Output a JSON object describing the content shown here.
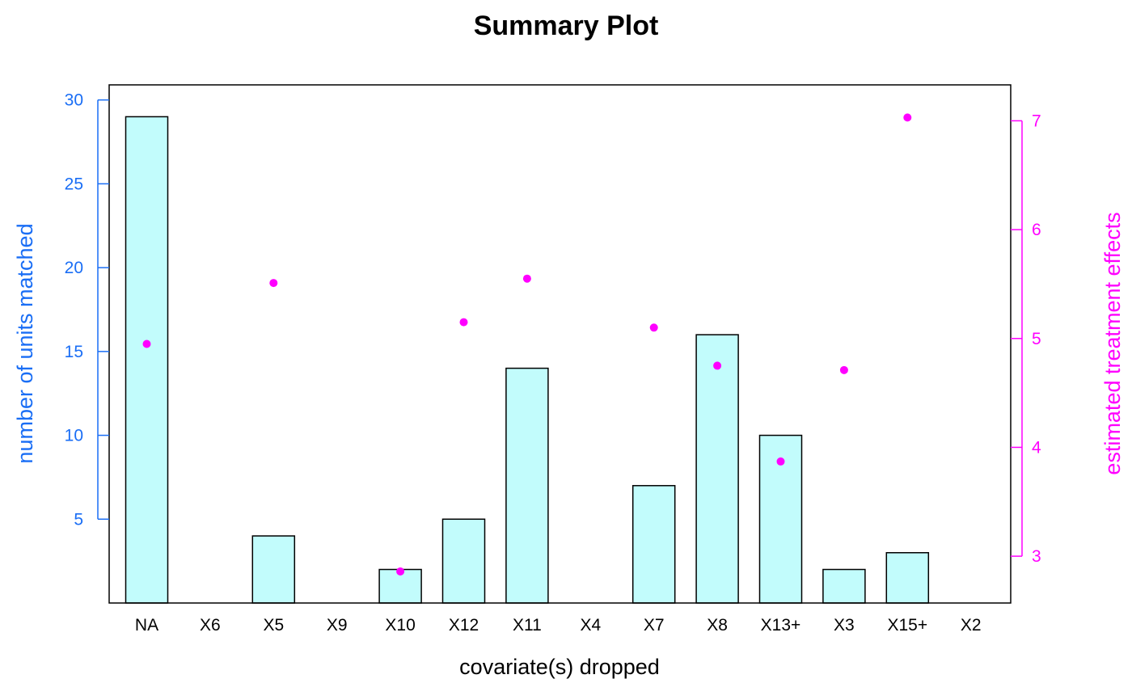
{
  "colors": {
    "left_axis": "#1a6ef5",
    "right_axis": "#ff00ff",
    "bar_fill": "#c2fcfc",
    "bar_stroke": "#000000",
    "point": "#ff00ff"
  },
  "chart_data": {
    "type": "bar",
    "title": "Summary Plot",
    "xlabel": "covariate(s) dropped",
    "ylabel": "number of units matched",
    "ylabel_right": "estimated treatment effects",
    "categories": [
      "NA",
      "X6",
      "X5",
      "X9",
      "X10",
      "X12",
      "X11",
      "X4",
      "X7",
      "X8",
      "X13+",
      "X3",
      "X15+",
      "X2"
    ],
    "left_ticks": [
      "5",
      "10",
      "15",
      "20",
      "25",
      "30"
    ],
    "right_ticks": [
      "3",
      "4",
      "5",
      "6",
      "7"
    ],
    "ylim": [
      0,
      30.9
    ],
    "ylim_right": [
      2.57,
      7.33
    ],
    "grid": false,
    "series": [
      {
        "name": "number of units matched",
        "type": "bar",
        "axis": "left",
        "values": [
          29,
          0,
          4,
          0,
          2,
          5,
          14,
          0,
          7,
          16,
          10,
          2,
          3,
          0
        ]
      },
      {
        "name": "estimated treatment effects",
        "type": "scatter",
        "axis": "right",
        "values": [
          4.95,
          null,
          5.51,
          null,
          2.86,
          5.15,
          5.55,
          null,
          5.1,
          4.75,
          3.87,
          4.71,
          7.03,
          null
        ]
      }
    ]
  }
}
